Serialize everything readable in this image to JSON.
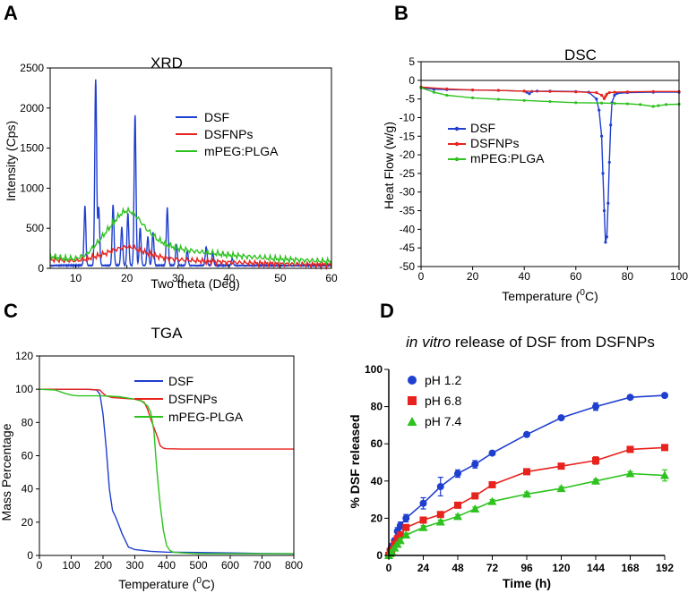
{
  "chart_data": [
    {
      "panel": "A",
      "type": "line",
      "title": "XRD",
      "xlabel": "Two theta (Deg)",
      "ylabel": "Intensity (Cps)",
      "xlim": [
        5,
        60
      ],
      "ylim": [
        0,
        2500
      ],
      "xticks": [
        "10",
        "20",
        "30",
        "40",
        "50",
        "60"
      ],
      "yticks": [
        "0",
        "500",
        "1000",
        "1500",
        "2000",
        "2500"
      ],
      "legend": "top-right",
      "series": [
        {
          "name": "DSF",
          "color": "#1f3fcf",
          "baseline": 30,
          "peaks": [
            [
              11.8,
              740
            ],
            [
              13.9,
              2320
            ],
            [
              14.5,
              720
            ],
            [
              17.3,
              760
            ],
            [
              19.0,
              480
            ],
            [
              20.2,
              650
            ],
            [
              21.6,
              1880
            ],
            [
              22.6,
              470
            ],
            [
              24.1,
              360
            ],
            [
              25.1,
              420
            ],
            [
              27.9,
              720
            ],
            [
              29.7,
              260
            ],
            [
              31.8,
              180
            ],
            [
              35.5,
              230
            ],
            [
              36.8,
              160
            ],
            [
              40.6,
              90
            ]
          ]
        },
        {
          "name": "DSFNPs",
          "color": "#e8221c",
          "x": [
            5,
            8,
            10,
            12,
            14,
            16,
            18,
            19,
            20,
            21,
            22,
            23,
            24,
            26,
            28,
            30,
            35,
            40,
            45,
            50,
            55,
            60
          ],
          "y": [
            110,
            95,
            95,
            115,
            150,
            190,
            240,
            255,
            270,
            265,
            240,
            215,
            190,
            150,
            125,
            110,
            90,
            75,
            65,
            55,
            48,
            42
          ]
        },
        {
          "name": "mPEG:PLGA",
          "color": "#2dc21e",
          "x": [
            5,
            8,
            10,
            12,
            14,
            16,
            18,
            19,
            20,
            21,
            22,
            23,
            24,
            26,
            28,
            30,
            32,
            35,
            40,
            45,
            50,
            55,
            60
          ],
          "y": [
            150,
            120,
            120,
            170,
            300,
            460,
            620,
            690,
            720,
            700,
            640,
            560,
            480,
            360,
            290,
            250,
            225,
            200,
            165,
            140,
            115,
            100,
            85
          ]
        }
      ]
    },
    {
      "panel": "B",
      "type": "line",
      "title": "DSC",
      "xlabel": "Temperature (",
      "xlabel_sup": "0",
      "xlabel_end": "C)",
      "ylabel": "Heat Flow (w/g)",
      "xlim": [
        0,
        100
      ],
      "ylim": [
        -50,
        5
      ],
      "xticks": [
        "0",
        "20",
        "40",
        "60",
        "80",
        "100"
      ],
      "yticks": [
        "5",
        "0",
        "-5",
        "-10",
        "-15",
        "-20",
        "-25",
        "-30",
        "-35",
        "-40",
        "-45",
        "-50"
      ],
      "legend": "center-left",
      "series": [
        {
          "name": "DSF",
          "color": "#1f3fcf",
          "x": [
            0,
            5,
            10,
            20,
            30,
            40,
            41,
            42,
            43,
            45,
            50,
            60,
            65,
            68,
            69,
            70,
            70.5,
            71,
            71.5,
            72,
            72.5,
            73,
            73.5,
            74,
            75,
            76,
            80,
            90,
            100
          ],
          "y": [
            -2,
            -2.4,
            -2.5,
            -2.6,
            -2.7,
            -2.9,
            -3.2,
            -3.6,
            -3.0,
            -2.9,
            -2.9,
            -3.0,
            -3.2,
            -5,
            -8,
            -15,
            -25,
            -35,
            -43.5,
            -42,
            -33,
            -22,
            -12,
            -6,
            -4,
            -3.5,
            -3.3,
            -3.2,
            -3.2
          ]
        },
        {
          "name": "DSFNPs",
          "color": "#e8221c",
          "x": [
            0,
            10,
            20,
            30,
            40,
            50,
            60,
            68,
            70,
            71,
            71.5,
            72,
            73,
            75,
            80,
            90,
            100
          ],
          "y": [
            -1.8,
            -2.3,
            -2.6,
            -2.7,
            -2.9,
            -3.0,
            -3.1,
            -3.3,
            -4.0,
            -4.9,
            -4.3,
            -3.7,
            -3.3,
            -3.2,
            -3.1,
            -3.0,
            -3.0
          ]
        },
        {
          "name": "mPEG:PLGA",
          "color": "#2dc21e",
          "x": [
            0,
            5,
            10,
            20,
            30,
            40,
            50,
            60,
            70,
            75,
            80,
            85,
            90,
            92,
            95,
            100
          ],
          "y": [
            -2,
            -3.2,
            -4.0,
            -4.7,
            -5.1,
            -5.4,
            -5.7,
            -6.0,
            -6.1,
            -6.2,
            -6.3,
            -6.5,
            -7.0,
            -6.8,
            -6.5,
            -6.4
          ]
        }
      ]
    },
    {
      "panel": "C",
      "type": "line",
      "title": "TGA",
      "xlabel": "Temperature (",
      "xlabel_sup": "0",
      "xlabel_end": "C)",
      "ylabel": "Mass Percentage",
      "xlim": [
        0,
        800
      ],
      "ylim": [
        0,
        120
      ],
      "xticks": [
        "0",
        "100",
        "200",
        "300",
        "400",
        "500",
        "600",
        "700",
        "800"
      ],
      "yticks": [
        "0",
        "20",
        "40",
        "60",
        "80",
        "100",
        "120"
      ],
      "legend": "top-right",
      "series": [
        {
          "name": "DSF",
          "color": "#1f3fcf",
          "x": [
            0,
            100,
            150,
            180,
            190,
            200,
            210,
            220,
            230,
            240,
            250,
            260,
            270,
            280,
            300,
            350,
            400,
            500,
            600,
            700,
            800
          ],
          "y": [
            100,
            100,
            100,
            99.5,
            97,
            85,
            65,
            40,
            27,
            23,
            18,
            13,
            9,
            5,
            3.5,
            2.5,
            2,
            1.8,
            1.5,
            1.2,
            1
          ]
        },
        {
          "name": "DSFNPs",
          "color": "#e8221c",
          "x": [
            0,
            100,
            150,
            190,
            200,
            210,
            230,
            300,
            320,
            330,
            340,
            350,
            360,
            370,
            380,
            390,
            400,
            450,
            500,
            600,
            700,
            800
          ],
          "y": [
            100,
            100,
            100,
            99.5,
            97.5,
            96,
            95,
            94,
            93,
            92,
            88,
            82,
            77,
            72,
            66,
            64.5,
            64.2,
            64,
            64,
            64,
            64,
            64
          ]
        },
        {
          "name": "mPEG-PLGA",
          "color": "#2dc21e",
          "x": [
            0,
            50,
            80,
            100,
            120,
            150,
            200,
            250,
            300,
            320,
            340,
            350,
            360,
            365,
            370,
            380,
            390,
            400,
            410,
            420,
            450,
            500,
            600,
            700,
            800
          ],
          "y": [
            100,
            99.5,
            97.5,
            96.5,
            96,
            96,
            96,
            95.5,
            94,
            93,
            90,
            86,
            75,
            62,
            50,
            30,
            15,
            6,
            3,
            2,
            1.5,
            1,
            1,
            1,
            1
          ]
        }
      ]
    },
    {
      "panel": "D",
      "type": "line",
      "title_italic": "in vitro",
      "title_rest": " release of DSF from DSFNPs",
      "xlabel": "Time (h)",
      "ylabel": "% DSF released",
      "xlim": [
        0,
        192
      ],
      "ylim": [
        0,
        100
      ],
      "xticks": [
        "0",
        "24",
        "48",
        "72",
        "96",
        "120",
        "144",
        "168",
        "192"
      ],
      "yticks": [
        "0",
        "20",
        "40",
        "60",
        "80",
        "100"
      ],
      "legend": "top-left",
      "series": [
        {
          "name": "pH 1.2",
          "color": "#1f3fcf",
          "marker": "circle",
          "x": [
            0,
            1,
            2,
            4,
            6,
            8,
            12,
            24,
            36,
            48,
            60,
            72,
            96,
            120,
            144,
            168,
            192
          ],
          "y": [
            0,
            3,
            5,
            8,
            13,
            16,
            20,
            28,
            37,
            44,
            49,
            55,
            65,
            74,
            80,
            85,
            86
          ],
          "err": [
            0,
            0,
            0,
            1,
            2,
            2,
            2,
            3,
            5,
            2,
            2,
            1,
            1,
            1,
            2,
            1,
            1
          ]
        },
        {
          "name": "pH 6.8",
          "color": "#e8221c",
          "marker": "square",
          "x": [
            0,
            1,
            2,
            4,
            6,
            8,
            12,
            24,
            36,
            48,
            60,
            72,
            96,
            120,
            144,
            168,
            192
          ],
          "y": [
            0,
            2,
            3,
            6,
            9,
            11,
            15,
            19,
            22,
            27,
            32,
            38,
            45,
            48,
            51,
            57,
            58
          ],
          "err": [
            0,
            0,
            0,
            1,
            1,
            1,
            1,
            1,
            1,
            1,
            1,
            1,
            1,
            1,
            2,
            1,
            1
          ]
        },
        {
          "name": "pH 7.4",
          "color": "#2dc21e",
          "marker": "triangle",
          "x": [
            0,
            1,
            2,
            4,
            6,
            8,
            12,
            24,
            36,
            48,
            60,
            72,
            96,
            120,
            144,
            168,
            192
          ],
          "y": [
            0,
            1,
            2,
            4,
            6,
            8,
            11,
            15,
            18,
            21,
            25,
            29,
            33,
            36,
            40,
            44,
            43
          ],
          "err": [
            0,
            0,
            0,
            1,
            1,
            1,
            1,
            1,
            1,
            1,
            1,
            1,
            1,
            1,
            1,
            1,
            3
          ]
        }
      ]
    }
  ]
}
